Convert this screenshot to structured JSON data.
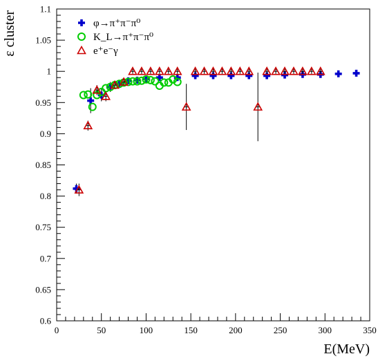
{
  "chart_data": {
    "type": "scatter",
    "title": "",
    "xlabel": "E(MeV)",
    "ylabel": "ε cluster",
    "xlim": [
      0,
      350
    ],
    "ylim": [
      0.6,
      1.1
    ],
    "xticks": [
      0,
      50,
      100,
      150,
      200,
      250,
      300,
      350
    ],
    "yticks": [
      0.6,
      0.65,
      0.7,
      0.75,
      0.8,
      0.85,
      0.9,
      0.95,
      1,
      1.05,
      1.1
    ],
    "xtick_labels": [
      "0",
      "50",
      "100",
      "150",
      "200",
      "250",
      "300",
      "350"
    ],
    "ytick_labels": [
      "0.6",
      "0.65",
      "0.7",
      "0.75",
      "0.8",
      "0.85",
      "0.9",
      "0.95",
      "1",
      "1.05",
      "1.1"
    ],
    "grid": false,
    "legend_position": "top-left",
    "series": [
      {
        "name": "φ→π⁺π⁻π⁰",
        "marker": "cross",
        "color": "#0000cc",
        "points": [
          {
            "x": 22,
            "y": 0.812,
            "ex": 2.5,
            "ey": 0.008
          },
          {
            "x": 38,
            "y": 0.953,
            "ex": 2.5,
            "ey": 0.02
          },
          {
            "x": 50,
            "y": 0.962,
            "ex": 2.5,
            "ey": 0.01
          },
          {
            "x": 60,
            "y": 0.975,
            "ex": 2.5,
            "ey": 0.008
          },
          {
            "x": 70,
            "y": 0.98,
            "ex": 2.5,
            "ey": 0.006
          },
          {
            "x": 80,
            "y": 0.985,
            "ex": 2.5,
            "ey": 0.005
          },
          {
            "x": 90,
            "y": 0.986,
            "ex": 2.5,
            "ey": 0.004
          },
          {
            "x": 100,
            "y": 0.988,
            "ex": 2.5,
            "ey": 0.004
          },
          {
            "x": 115,
            "y": 0.99,
            "ex": 2.5,
            "ey": 0.004
          },
          {
            "x": 135,
            "y": 0.99,
            "ex": 2.5,
            "ey": 0.003
          },
          {
            "x": 155,
            "y": 0.993,
            "ex": 2.5,
            "ey": 0.003
          },
          {
            "x": 175,
            "y": 0.993,
            "ex": 2.5,
            "ey": 0.003
          },
          {
            "x": 195,
            "y": 0.993,
            "ex": 2.5,
            "ey": 0.003
          },
          {
            "x": 215,
            "y": 0.993,
            "ex": 2.5,
            "ey": 0.003
          },
          {
            "x": 235,
            "y": 0.993,
            "ex": 2.5,
            "ey": 0.003
          },
          {
            "x": 255,
            "y": 0.994,
            "ex": 2.5,
            "ey": 0.003
          },
          {
            "x": 275,
            "y": 0.995,
            "ex": 2.5,
            "ey": 0.003
          },
          {
            "x": 295,
            "y": 0.995,
            "ex": 2.5,
            "ey": 0.003
          },
          {
            "x": 315,
            "y": 0.996,
            "ex": 2.5,
            "ey": 0.003
          },
          {
            "x": 335,
            "y": 0.997,
            "ex": 2.5,
            "ey": 0.003
          }
        ]
      },
      {
        "name": "K_L→π⁺π⁻π⁰",
        "marker": "circle",
        "color": "#00cc00",
        "points": [
          {
            "x": 30,
            "y": 0.962,
            "ex": 0,
            "ey": 0
          },
          {
            "x": 35,
            "y": 0.963,
            "ex": 0,
            "ey": 0
          },
          {
            "x": 40,
            "y": 0.943,
            "ex": 0,
            "ey": 0
          },
          {
            "x": 45,
            "y": 0.962,
            "ex": 0,
            "ey": 0
          },
          {
            "x": 50,
            "y": 0.967,
            "ex": 0,
            "ey": 0
          },
          {
            "x": 55,
            "y": 0.973,
            "ex": 0,
            "ey": 0
          },
          {
            "x": 60,
            "y": 0.975,
            "ex": 0,
            "ey": 0
          },
          {
            "x": 65,
            "y": 0.978,
            "ex": 0,
            "ey": 0
          },
          {
            "x": 70,
            "y": 0.98,
            "ex": 0,
            "ey": 0
          },
          {
            "x": 75,
            "y": 0.982,
            "ex": 0,
            "ey": 0
          },
          {
            "x": 80,
            "y": 0.983,
            "ex": 0,
            "ey": 0
          },
          {
            "x": 85,
            "y": 0.984,
            "ex": 0,
            "ey": 0
          },
          {
            "x": 90,
            "y": 0.984,
            "ex": 0,
            "ey": 0
          },
          {
            "x": 95,
            "y": 0.985,
            "ex": 0,
            "ey": 0
          },
          {
            "x": 100,
            "y": 0.987,
            "ex": 0,
            "ey": 0
          },
          {
            "x": 105,
            "y": 0.986,
            "ex": 0,
            "ey": 0
          },
          {
            "x": 110,
            "y": 0.984,
            "ex": 0,
            "ey": 0
          },
          {
            "x": 115,
            "y": 0.977,
            "ex": 0,
            "ey": 0
          },
          {
            "x": 120,
            "y": 0.982,
            "ex": 0,
            "ey": 0
          },
          {
            "x": 125,
            "y": 0.982,
            "ex": 0,
            "ey": 0
          },
          {
            "x": 130,
            "y": 0.987,
            "ex": 0,
            "ey": 0
          },
          {
            "x": 135,
            "y": 0.983,
            "ex": 0,
            "ey": 0
          }
        ]
      },
      {
        "name": "e⁺e⁻γ",
        "marker": "triangle",
        "color": "#cc0000",
        "points": [
          {
            "x": 25,
            "y": 0.81,
            "ex": 2.5,
            "ey": 0.01
          },
          {
            "x": 35,
            "y": 0.913,
            "ex": 2.5,
            "ey": 0.008
          },
          {
            "x": 45,
            "y": 0.97,
            "ex": 2.5,
            "ey": 0.008
          },
          {
            "x": 55,
            "y": 0.96,
            "ex": 2.5,
            "ey": 0.008
          },
          {
            "x": 65,
            "y": 0.978,
            "ex": 2.5,
            "ey": 0.006
          },
          {
            "x": 75,
            "y": 0.983,
            "ex": 2.5,
            "ey": 0.006
          },
          {
            "x": 85,
            "y": 1.0,
            "ex": 2.5,
            "ey": 0.004
          },
          {
            "x": 95,
            "y": 1.0,
            "ex": 2.5,
            "ey": 0.004
          },
          {
            "x": 105,
            "y": 1.0,
            "ex": 2.5,
            "ey": 0.004
          },
          {
            "x": 115,
            "y": 1.0,
            "ex": 2.5,
            "ey": 0.004
          },
          {
            "x": 125,
            "y": 1.0,
            "ex": 2.5,
            "ey": 0.004
          },
          {
            "x": 135,
            "y": 1.0,
            "ex": 2.5,
            "ey": 0.004
          },
          {
            "x": 145,
            "y": 0.943,
            "ex": 2.5,
            "ey": 0.037
          },
          {
            "x": 155,
            "y": 1.0,
            "ex": 2.5,
            "ey": 0.004
          },
          {
            "x": 165,
            "y": 1.0,
            "ex": 2.5,
            "ey": 0.004
          },
          {
            "x": 175,
            "y": 1.0,
            "ex": 2.5,
            "ey": 0.004
          },
          {
            "x": 185,
            "y": 1.0,
            "ex": 2.5,
            "ey": 0.004
          },
          {
            "x": 195,
            "y": 1.0,
            "ex": 2.5,
            "ey": 0.004
          },
          {
            "x": 205,
            "y": 1.0,
            "ex": 2.5,
            "ey": 0.004
          },
          {
            "x": 215,
            "y": 1.0,
            "ex": 2.5,
            "ey": 0.004
          },
          {
            "x": 225,
            "y": 0.943,
            "ex": 2.5,
            "ey": 0.055
          },
          {
            "x": 235,
            "y": 1.0,
            "ex": 2.5,
            "ey": 0.004
          },
          {
            "x": 245,
            "y": 1.0,
            "ex": 2.5,
            "ey": 0.004
          },
          {
            "x": 255,
            "y": 1.0,
            "ex": 2.5,
            "ey": 0.004
          },
          {
            "x": 265,
            "y": 1.0,
            "ex": 2.5,
            "ey": 0.004
          },
          {
            "x": 275,
            "y": 1.0,
            "ex": 2.5,
            "ey": 0.004
          },
          {
            "x": 285,
            "y": 1.0,
            "ex": 2.5,
            "ey": 0.004
          },
          {
            "x": 295,
            "y": 1.0,
            "ex": 2.5,
            "ey": 0.004
          }
        ]
      }
    ]
  }
}
